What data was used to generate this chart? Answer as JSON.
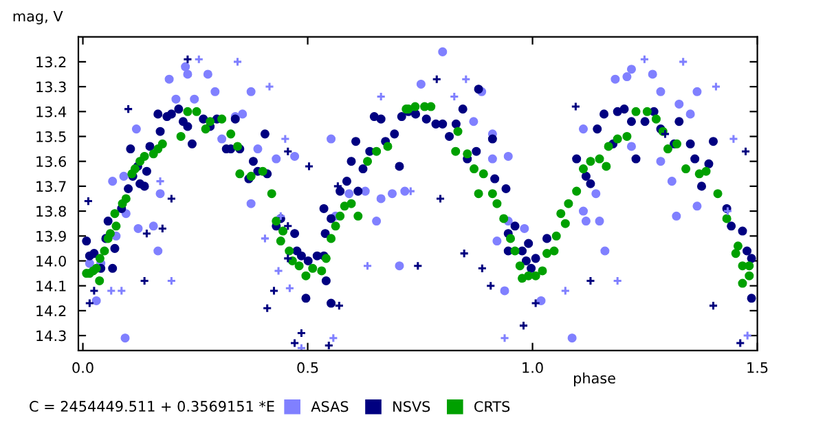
{
  "chart_data": {
    "type": "scatter",
    "xlabel": "phase",
    "ylabel": "mag, V",
    "xlim": [
      -0.01,
      1.5
    ],
    "xticks": [
      {
        "value": 0,
        "label": "0.0"
      },
      0.5,
      {
        "value": 1,
        "label": "1.0"
      },
      1.5
    ],
    "ylim": [
      14.36,
      13.1
    ],
    "yticks": [
      13.2,
      13.3,
      13.4,
      13.5,
      13.6,
      13.7,
      13.8,
      13.9,
      {
        "value": 14,
        "label": "14.0"
      },
      14.1,
      14.2,
      14.3
    ],
    "grid": false,
    "legend": "bottom",
    "annotations": [
      "C = 2454449.511 + 0.3569151 *E"
    ],
    "series": [
      {
        "name": "ASAS",
        "color": "#8080ff",
        "marker": "circle",
        "x": [
          0.015,
          0.03,
          0.04,
          0.074,
          0.066,
          0.091,
          0.096,
          0.119,
          0.123,
          0.157,
          0.167,
          0.172,
          0.192,
          0.207,
          0.228,
          0.233,
          0.248,
          0.278,
          0.294,
          0.309,
          0.339,
          0.355,
          0.374,
          0.374,
          0.389,
          0.43,
          0.471,
          0.552,
          0.562,
          0.592,
          0.628,
          0.653,
          0.663,
          0.688,
          0.704,
          0.716,
          0.094,
          0.8,
          0.752,
          0.869,
          0.887,
          0.911,
          0.911,
          0.946,
          0.921,
          0.946,
          0.982,
          0.938,
          1.019,
          1.088,
          1.113,
          1.113,
          1.119,
          1.141,
          1.149,
          1.161,
          1.184,
          1.21,
          1.22,
          1.267,
          1.285,
          1.22,
          1.285,
          1.31,
          1.326,
          1.366,
          1.351,
          1.366,
          1.32
        ],
        "values": [
          14.01,
          14.16,
          14.01,
          13.9,
          13.68,
          13.66,
          13.81,
          13.47,
          13.87,
          13.86,
          13.96,
          13.73,
          13.27,
          13.35,
          13.22,
          13.25,
          13.35,
          13.25,
          13.32,
          13.51,
          13.42,
          13.41,
          13.32,
          13.77,
          13.55,
          13.59,
          13.58,
          13.51,
          13.82,
          13.73,
          13.72,
          13.84,
          13.75,
          13.73,
          14.02,
          13.72,
          14.31,
          13.16,
          13.29,
          13.44,
          13.32,
          13.49,
          13.59,
          13.58,
          13.92,
          13.84,
          13.87,
          14.12,
          14.16,
          14.31,
          13.47,
          13.8,
          13.84,
          13.73,
          13.84,
          13.96,
          13.27,
          13.26,
          13.23,
          13.25,
          13.32,
          13.54,
          13.6,
          13.68,
          13.37,
          13.32,
          13.41,
          13.78,
          13.82
        ]
      },
      {
        "name": "NSVS",
        "color": "#000080",
        "marker": "circle",
        "x": [
          0.008,
          0.015,
          0.025,
          0.04,
          0.051,
          0.066,
          0.071,
          0.056,
          0.086,
          0.101,
          0.106,
          0.111,
          0.122,
          0.127,
          0.137,
          0.142,
          0.149,
          0.167,
          0.172,
          0.187,
          0.197,
          0.213,
          0.223,
          0.233,
          0.243,
          0.268,
          0.283,
          0.298,
          0.319,
          0.329,
          0.339,
          0.349,
          0.369,
          0.379,
          0.389,
          0.405,
          0.41,
          0.43,
          0.44,
          0.471,
          0.476,
          0.486,
          0.496,
          0.501,
          0.521,
          0.536,
          0.539,
          0.536,
          0.541,
          0.552,
          0.552,
          0.572,
          0.587,
          0.597,
          0.607,
          0.612,
          0.623,
          0.638,
          0.648,
          0.663,
          0.673,
          0.693,
          0.704,
          0.709,
          0.724,
          0.74,
          0.764,
          0.785,
          0.8,
          0.815,
          0.83,
          0.845,
          0.88,
          0.855,
          0.875,
          0.911,
          0.916,
          0.941,
          0.946,
          0.946,
          0.961,
          0.977,
          0.991,
          0.986,
          1.007,
          0.997,
          1.032,
          1.098,
          1.119,
          1.129,
          1.144,
          1.159,
          1.179,
          1.189,
          1.204,
          1.22,
          1.23,
          1.25,
          1.27,
          1.285,
          1.315,
          1.326,
          1.351,
          1.361,
          1.376,
          1.392,
          1.402,
          1.432,
          1.442,
          1.467,
          1.477,
          1.487,
          1.487
        ],
        "values": [
          13.92,
          13.98,
          13.97,
          14.03,
          13.91,
          14.03,
          13.95,
          13.84,
          13.79,
          13.71,
          13.55,
          13.66,
          13.62,
          13.69,
          13.7,
          13.64,
          13.54,
          13.41,
          13.48,
          13.42,
          13.41,
          13.39,
          13.44,
          13.46,
          13.53,
          13.43,
          13.46,
          13.43,
          13.55,
          13.55,
          13.43,
          13.55,
          13.67,
          13.6,
          13.64,
          13.49,
          13.65,
          13.86,
          13.83,
          13.89,
          13.96,
          13.98,
          14.15,
          14.0,
          13.98,
          13.98,
          13.89,
          13.79,
          14.08,
          14.17,
          13.83,
          13.72,
          13.68,
          13.6,
          13.52,
          13.72,
          13.63,
          13.56,
          13.42,
          13.43,
          13.52,
          13.49,
          13.62,
          13.42,
          13.4,
          13.41,
          13.43,
          13.45,
          13.45,
          13.5,
          13.45,
          13.39,
          13.31,
          13.59,
          13.56,
          13.51,
          13.67,
          13.71,
          13.89,
          13.96,
          13.86,
          13.96,
          13.93,
          14.0,
          13.99,
          14.03,
          13.91,
          13.59,
          13.66,
          13.69,
          13.47,
          13.41,
          13.53,
          13.4,
          13.39,
          13.44,
          13.59,
          13.44,
          13.4,
          13.47,
          13.53,
          13.44,
          13.53,
          13.59,
          13.7,
          13.61,
          13.52,
          13.79,
          13.86,
          13.88,
          13.96,
          13.99,
          14.15
        ]
      },
      {
        "name": "CRTS",
        "color": "#00a000",
        "marker": "circle",
        "x": [
          0.008,
          0.015,
          0.023,
          0.03,
          0.037,
          0.038,
          0.048,
          0.056,
          0.061,
          0.071,
          0.074,
          0.088,
          0.096,
          0.109,
          0.116,
          0.127,
          0.137,
          0.157,
          0.167,
          0.177,
          0.218,
          0.233,
          0.253,
          0.273,
          0.283,
          0.309,
          0.329,
          0.344,
          0.349,
          0.374,
          0.4,
          0.42,
          0.43,
          0.445,
          0.44,
          0.459,
          0.466,
          0.481,
          0.496,
          0.511,
          0.531,
          0.541,
          0.552,
          0.562,
          0.572,
          0.582,
          0.597,
          0.612,
          0.633,
          0.653,
          0.678,
          0.724,
          0.719,
          0.739,
          0.76,
          0.774,
          0.834,
          0.829,
          0.855,
          0.87,
          0.891,
          0.88,
          0.911,
          0.921,
          0.936,
          0.951,
          0.961,
          0.972,
          0.977,
          0.991,
          1.007,
          1.022,
          1.032,
          1.048,
          1.053,
          1.063,
          1.073,
          1.08,
          1.098,
          1.113,
          1.129,
          1.149,
          1.164,
          1.169,
          1.189,
          1.21,
          1.23,
          1.255,
          1.275,
          1.29,
          1.301,
          1.321,
          1.341,
          1.371,
          1.386,
          1.412,
          1.432,
          1.452,
          1.457,
          1.467,
          1.482,
          1.467,
          1.482
        ],
        "values": [
          14.05,
          14.05,
          14.04,
          14.03,
          14.08,
          13.99,
          13.96,
          13.91,
          13.89,
          13.81,
          13.86,
          13.77,
          13.75,
          13.65,
          13.63,
          13.6,
          13.58,
          13.57,
          13.55,
          13.53,
          13.5,
          13.4,
          13.4,
          13.47,
          13.44,
          13.43,
          13.49,
          13.54,
          13.65,
          13.66,
          13.64,
          13.73,
          13.84,
          13.88,
          13.92,
          13.96,
          14.0,
          14.02,
          14.06,
          14.03,
          14.04,
          13.99,
          13.91,
          13.86,
          13.82,
          13.78,
          13.77,
          13.82,
          13.6,
          13.56,
          13.54,
          13.39,
          13.39,
          13.38,
          13.38,
          13.38,
          13.48,
          13.56,
          13.57,
          13.63,
          13.65,
          13.73,
          13.73,
          13.77,
          13.83,
          13.91,
          13.96,
          14.02,
          14.07,
          14.06,
          14.06,
          14.04,
          13.97,
          13.96,
          13.9,
          13.81,
          13.85,
          13.77,
          13.72,
          13.63,
          13.6,
          13.59,
          13.62,
          13.54,
          13.51,
          13.5,
          13.4,
          13.4,
          13.43,
          13.48,
          13.55,
          13.53,
          13.63,
          13.65,
          13.64,
          13.73,
          13.83,
          13.97,
          13.94,
          14.02,
          14.02,
          14.09,
          14.06
        ]
      },
      {
        "color": "#000080",
        "marker": "cross",
        "x": [
          0.012,
          0.015,
          0.025,
          0.101,
          0.137,
          0.142,
          0.177,
          0.197,
          0.233,
          0.41,
          0.425,
          0.456,
          0.456,
          0.471,
          0.486,
          0.547,
          0.57,
          0.456,
          0.503,
          0.567,
          0.787,
          0.795,
          0.745,
          0.848,
          0.888,
          0.907,
          0.98,
          1.007,
          1.096,
          1.129,
          1.295,
          1.402,
          1.462,
          1.474
        ],
        "values": [
          13.76,
          14.17,
          14.12,
          13.39,
          14.08,
          13.89,
          13.87,
          13.75,
          13.19,
          14.19,
          14.12,
          13.99,
          13.86,
          14.33,
          14.29,
          14.34,
          14.18,
          13.56,
          13.62,
          13.7,
          13.27,
          13.75,
          14.02,
          13.97,
          14.03,
          14.1,
          14.26,
          14.17,
          13.38,
          14.08,
          13.49,
          14.18,
          14.33,
          13.56
        ]
      },
      {
        "color": "#8080ff",
        "marker": "cross",
        "x": [
          0.063,
          0.086,
          0.172,
          0.197,
          0.258,
          0.344,
          0.415,
          0.45,
          0.44,
          0.405,
          0.435,
          0.46,
          0.486,
          0.557,
          0.633,
          0.663,
          0.729,
          0.852,
          0.826,
          0.938,
          1.073,
          1.189,
          1.249,
          1.335,
          1.408,
          1.447,
          1.434,
          1.478
        ],
        "values": [
          14.12,
          14.12,
          13.68,
          14.08,
          13.19,
          13.2,
          13.3,
          13.51,
          13.82,
          13.91,
          14.04,
          14.11,
          14.35,
          14.31,
          14.02,
          13.34,
          13.72,
          13.27,
          13.34,
          14.31,
          14.12,
          14.08,
          13.19,
          13.2,
          13.3,
          13.51,
          13.8,
          14.3
        ]
      }
    ]
  }
}
